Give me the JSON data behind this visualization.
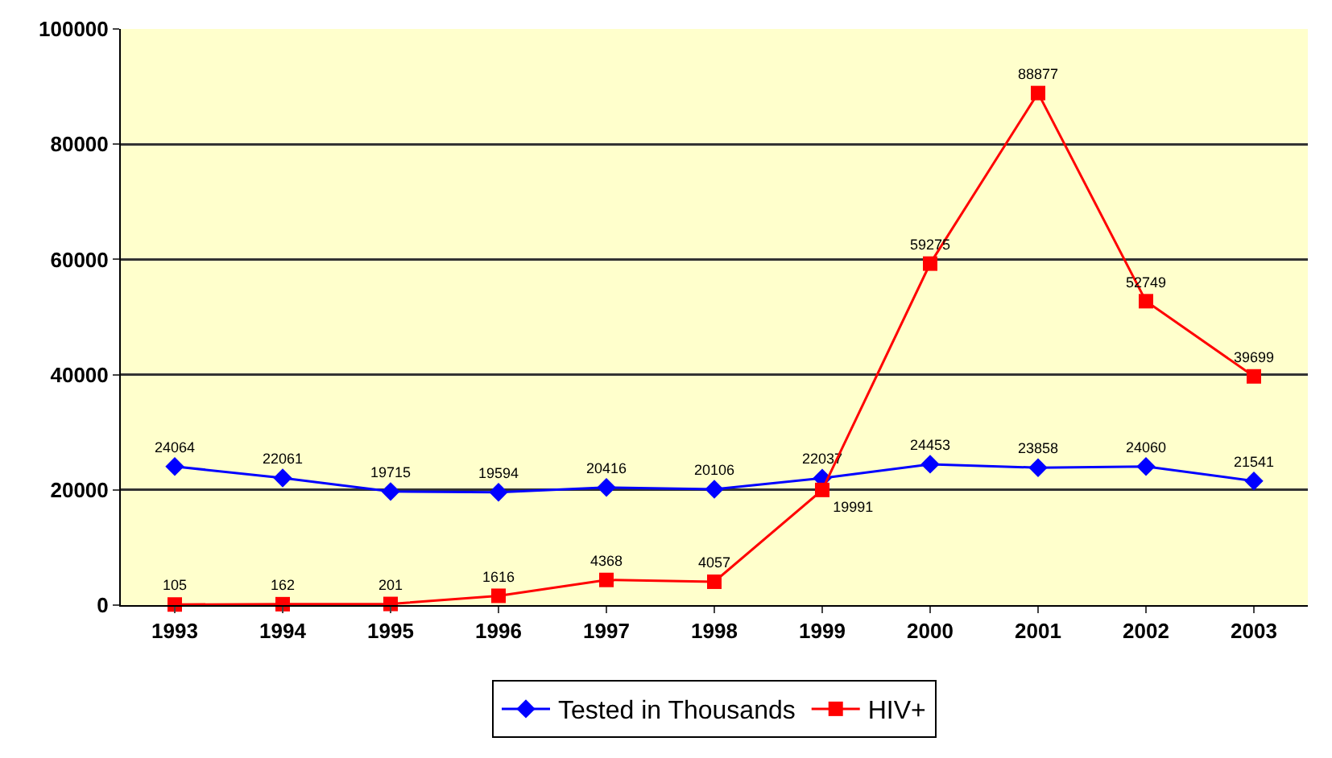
{
  "chart_data": {
    "type": "line",
    "categories": [
      "1993",
      "1994",
      "1995",
      "1996",
      "1997",
      "1998",
      "1999",
      "2000",
      "2001",
      "2002",
      "2003"
    ],
    "series": [
      {
        "name": "Tested in Thousands",
        "color": "#0000ff",
        "marker": "diamond",
        "values": [
          24064,
          22061,
          19715,
          19594,
          20416,
          20106,
          22037,
          24453,
          23858,
          24060,
          21541
        ]
      },
      {
        "name": "HIV+",
        "color": "#ff0000",
        "marker": "square",
        "values": [
          105,
          162,
          201,
          1616,
          4368,
          4057,
          19991,
          59275,
          88877,
          52749,
          39699
        ]
      }
    ],
    "ylim": [
      0,
      100000
    ],
    "yticks": [
      0,
      20000,
      40000,
      60000,
      80000,
      100000
    ],
    "grid": "y",
    "legend": "bottom",
    "data_labels": true
  }
}
